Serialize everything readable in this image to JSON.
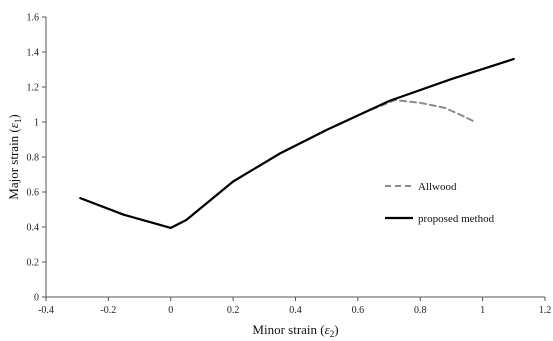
{
  "chart_data": {
    "type": "line",
    "title": "",
    "xlabel": {
      "text": "Minor strain (",
      "symbol": "ε",
      "sub": "2",
      "close": ")"
    },
    "ylabel": {
      "text": "Major strain (",
      "symbol": "ε",
      "sub": "1",
      "close": ")"
    },
    "xlim": [
      -0.4,
      1.2
    ],
    "ylim": [
      0,
      1.6
    ],
    "xticks": [
      "-0.4",
      "-0.2",
      "0",
      "0.2",
      "0.4",
      "0.6",
      "0.8",
      "1",
      "1.2"
    ],
    "yticks": [
      "0",
      "0.2",
      "0.4",
      "0.6",
      "0.8",
      "1",
      "1.2",
      "1.4",
      "1.6"
    ],
    "grid": false,
    "legend_position": "right-center",
    "series": [
      {
        "name": "Allwood",
        "style": "dashed",
        "color": "#8c8c8c",
        "x": [
          -0.29,
          -0.15,
          0.0,
          0.05,
          0.2,
          0.35,
          0.5,
          0.62,
          0.72,
          0.8,
          0.88,
          0.93,
          0.97
        ],
        "y": [
          0.565,
          0.47,
          0.395,
          0.44,
          0.66,
          0.82,
          0.955,
          1.055,
          1.125,
          1.11,
          1.08,
          1.04,
          1.005
        ]
      },
      {
        "name": "proposed method",
        "style": "solid",
        "color": "#000000",
        "x": [
          -0.29,
          -0.15,
          0.0,
          0.05,
          0.2,
          0.35,
          0.5,
          0.7,
          0.9,
          1.1
        ],
        "y": [
          0.565,
          0.47,
          0.395,
          0.44,
          0.66,
          0.82,
          0.955,
          1.12,
          1.245,
          1.36
        ]
      }
    ]
  }
}
